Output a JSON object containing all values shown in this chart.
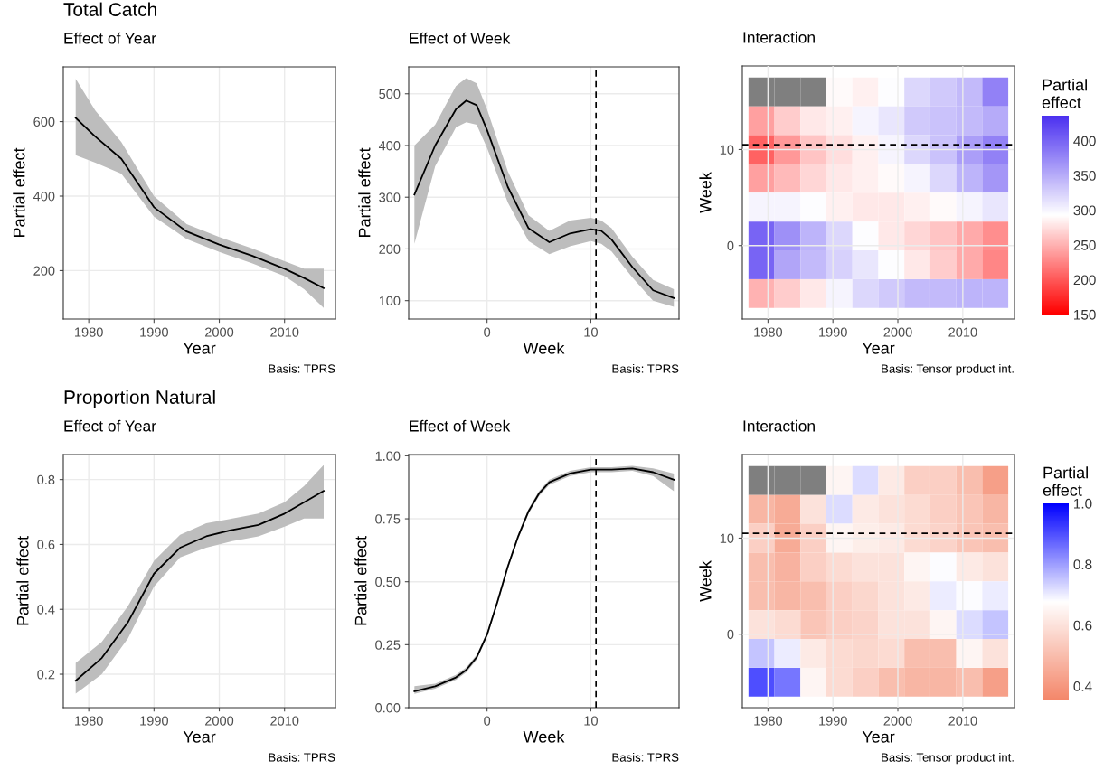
{
  "chart_data": [
    {
      "type": "line",
      "title": "Total Catch",
      "subtitle": "Effect of Year",
      "xlabel": "Year",
      "ylabel": "Partial effect",
      "xlim": [
        1976.1,
        2017.8
      ],
      "xticks": [
        1980,
        1990,
        2000,
        2010
      ],
      "ylim": [
        70,
        747
      ],
      "yticks": [
        200,
        400,
        600
      ],
      "grid": true,
      "legend": false,
      "annotations": [
        "Basis: TPRS"
      ],
      "series": [
        {
          "color": "#000000",
          "x": [
            1978,
            1981,
            1985,
            1990,
            1995,
            2000,
            2005,
            2010,
            2013,
            2016
          ],
          "values": [
            610,
            560,
            500,
            370,
            305,
            270,
            240,
            205,
            180,
            153
          ],
          "lower": [
            510,
            490,
            460,
            345,
            285,
            250,
            220,
            185,
            150,
            100
          ],
          "upper": [
            715,
            630,
            545,
            400,
            325,
            290,
            260,
            225,
            205,
            205
          ]
        }
      ]
    },
    {
      "type": "line",
      "subtitle": "Effect of Week",
      "xlabel": "Week",
      "ylabel": "Partial effect",
      "xlim": [
        -7.55,
        18.5
      ],
      "xticks": [
        0,
        10
      ],
      "ylim": [
        64.5,
        552
      ],
      "yticks": [
        100,
        200,
        300,
        400,
        500
      ],
      "grid": true,
      "legend": false,
      "annotations": [
        "Basis: TPRS"
      ],
      "ref_lines": [
        {
          "axis": "x",
          "value": 10.5,
          "line_style": "dashed",
          "color": "#000000"
        }
      ],
      "series": [
        {
          "color": "#000000",
          "x": [
            -7,
            -5,
            -3,
            -2,
            -1,
            0,
            2,
            4,
            6,
            8,
            10,
            11,
            12,
            14,
            16,
            18
          ],
          "values": [
            305,
            400,
            470,
            487,
            478,
            430,
            320,
            240,
            213,
            230,
            238,
            235,
            218,
            165,
            120,
            105
          ],
          "lower": [
            210,
            360,
            435,
            445,
            440,
            395,
            290,
            215,
            190,
            205,
            215,
            210,
            195,
            145,
            100,
            88
          ],
          "upper": [
            400,
            440,
            515,
            530,
            520,
            470,
            350,
            265,
            235,
            255,
            260,
            255,
            240,
            185,
            140,
            122
          ]
        }
      ]
    },
    {
      "type": "heatmap",
      "subtitle": "Interaction",
      "xlabel": "Year",
      "ylabel": "Week",
      "clabel": "Partial effect",
      "xlim": [
        1976.05,
        2017.96
      ],
      "xticks": [
        1980,
        1990,
        2000,
        2010
      ],
      "ylim": [
        -7.65,
        18.7
      ],
      "yticks": [
        0,
        10
      ],
      "grid": true,
      "annotations": [
        "Basis: Tensor product int."
      ],
      "ref_lines": [
        {
          "axis": "y",
          "value": 10.5,
          "line_style": "dashed",
          "color": "#000000"
        }
      ],
      "colors": [
        "#ff0000",
        "#ffffff",
        "#4b30f0"
      ],
      "clim": [
        150,
        436
      ],
      "cticks": [
        150,
        200,
        250,
        300,
        350,
        400
      ],
      "x": [
        1979,
        1983,
        1987,
        1991,
        1995,
        1999,
        2003,
        2007,
        2011,
        2015
      ],
      "y": [
        16,
        13,
        10,
        7,
        4,
        1,
        -2,
        -5
      ],
      "cells": [
        [
          null,
          null,
          null,
          290,
          285,
          295,
          320,
          330,
          340,
          380
        ],
        [
          240,
          265,
          280,
          285,
          300,
          310,
          330,
          335,
          340,
          350
        ],
        [
          205,
          235,
          260,
          275,
          285,
          300,
          320,
          335,
          360,
          380
        ],
        [
          240,
          255,
          270,
          280,
          285,
          290,
          300,
          320,
          345,
          365
        ],
        [
          300,
          300,
          295,
          285,
          280,
          280,
          285,
          290,
          300,
          310
        ],
        [
          400,
          370,
          345,
          320,
          295,
          280,
          270,
          260,
          245,
          230
        ],
        [
          400,
          355,
          340,
          325,
          310,
          295,
          280,
          265,
          245,
          225
        ],
        [
          250,
          265,
          280,
          300,
          320,
          330,
          340,
          340,
          345,
          345
        ]
      ]
    },
    {
      "type": "line",
      "title": "Proportion Natural",
      "subtitle": "Effect of Year",
      "xlabel": "Year",
      "ylabel": "Partial effect",
      "xlim": [
        1976.1,
        2017.8
      ],
      "xticks": [
        1980,
        1990,
        2000,
        2010
      ],
      "ylim": [
        0.097,
        0.877
      ],
      "yticks": [
        0.2,
        0.4,
        0.6,
        0.8
      ],
      "grid": true,
      "legend": false,
      "annotations": [
        "Basis: TPRS"
      ],
      "series": [
        {
          "color": "#000000",
          "x": [
            1978,
            1982,
            1986,
            1990,
            1994,
            1998,
            2002,
            2006,
            2010,
            2013,
            2016
          ],
          "values": [
            0.18,
            0.25,
            0.36,
            0.51,
            0.59,
            0.625,
            0.645,
            0.66,
            0.695,
            0.73,
            0.765
          ],
          "lower": [
            0.14,
            0.2,
            0.31,
            0.47,
            0.56,
            0.59,
            0.61,
            0.625,
            0.655,
            0.68,
            0.68
          ],
          "upper": [
            0.235,
            0.3,
            0.41,
            0.55,
            0.63,
            0.665,
            0.68,
            0.695,
            0.73,
            0.78,
            0.845
          ]
        }
      ]
    },
    {
      "type": "line",
      "subtitle": "Effect of Week",
      "xlabel": "Week",
      "ylabel": "Partial effect",
      "xlim": [
        -7.55,
        18.5
      ],
      "xticks": [
        0,
        10
      ],
      "ylim": [
        0,
        1.005
      ],
      "yticks": [
        {
          "value": 0,
          "label": "0.00"
        },
        {
          "value": 0.25,
          "label": "0.25"
        },
        {
          "value": 0.5,
          "label": "0.50"
        },
        {
          "value": 0.75,
          "label": "0.75"
        },
        {
          "value": 1,
          "label": "1.00"
        }
      ],
      "grid": true,
      "legend": false,
      "annotations": [
        "Basis: TPRS"
      ],
      "ref_lines": [
        {
          "axis": "x",
          "value": 10.5,
          "line_style": "dashed",
          "color": "#000000"
        }
      ],
      "series": [
        {
          "color": "#000000",
          "x": [
            -7,
            -5,
            -3,
            -2,
            -1,
            0,
            1,
            2,
            3,
            4,
            5,
            6,
            8,
            10,
            12,
            14,
            16,
            18
          ],
          "values": [
            0.065,
            0.085,
            0.12,
            0.15,
            0.2,
            0.29,
            0.42,
            0.56,
            0.68,
            0.78,
            0.85,
            0.895,
            0.93,
            0.945,
            0.945,
            0.95,
            0.935,
            0.905
          ],
          "lower": [
            0.055,
            0.075,
            0.11,
            0.14,
            0.19,
            0.28,
            0.41,
            0.55,
            0.67,
            0.77,
            0.84,
            0.885,
            0.92,
            0.935,
            0.935,
            0.94,
            0.92,
            0.86
          ],
          "upper": [
            0.085,
            0.095,
            0.13,
            0.16,
            0.21,
            0.3,
            0.43,
            0.57,
            0.69,
            0.79,
            0.86,
            0.905,
            0.94,
            0.955,
            0.955,
            0.96,
            0.95,
            0.93
          ]
        }
      ]
    },
    {
      "type": "heatmap",
      "subtitle": "Interaction",
      "xlabel": "Year",
      "ylabel": "Week",
      "clabel": "Partial effect",
      "xlim": [
        1976.05,
        2017.96
      ],
      "xticks": [
        1980,
        1990,
        2000,
        2010
      ],
      "ylim": [
        -7.65,
        18.7
      ],
      "yticks": [
        0,
        10
      ],
      "grid": true,
      "annotations": [
        "Basis: Tensor product int."
      ],
      "ref_lines": [
        {
          "axis": "y",
          "value": 10.5,
          "line_style": "dashed",
          "color": "#000000"
        }
      ],
      "colors": [
        "#f4876a",
        "#ffffff",
        "#0000ff"
      ],
      "clim": [
        0.353,
        1.0
      ],
      "cticks": [
        0.4,
        0.6,
        0.8,
        {
          "value": 1,
          "label": "1.0"
        }
      ],
      "x": [
        1979,
        1983,
        1987,
        1991,
        1995,
        1999,
        2003,
        2007,
        2011,
        2015
      ],
      "y": [
        16,
        13,
        10,
        7,
        4,
        1,
        -2,
        -5
      ],
      "cells": [
        [
          null,
          null,
          null,
          0.65,
          0.72,
          0.62,
          0.55,
          0.55,
          0.5,
          0.42
        ],
        [
          0.48,
          0.45,
          0.6,
          0.72,
          0.62,
          0.6,
          0.58,
          0.55,
          0.52,
          0.48
        ],
        [
          0.55,
          0.45,
          0.55,
          0.65,
          0.63,
          0.62,
          0.58,
          0.56,
          0.52,
          0.5
        ],
        [
          0.5,
          0.47,
          0.55,
          0.58,
          0.6,
          0.6,
          0.65,
          0.68,
          0.62,
          0.6
        ],
        [
          0.5,
          0.48,
          0.5,
          0.55,
          0.57,
          0.6,
          0.62,
          0.7,
          0.68,
          0.7
        ],
        [
          0.6,
          0.58,
          0.52,
          0.55,
          0.56,
          0.6,
          0.6,
          0.65,
          0.72,
          0.75
        ],
        [
          0.75,
          0.7,
          0.62,
          0.58,
          0.57,
          0.58,
          0.5,
          0.5,
          0.65,
          0.6
        ],
        [
          0.9,
          0.85,
          0.65,
          0.58,
          0.55,
          0.5,
          0.48,
          0.48,
          0.5,
          0.42
        ]
      ]
    }
  ]
}
